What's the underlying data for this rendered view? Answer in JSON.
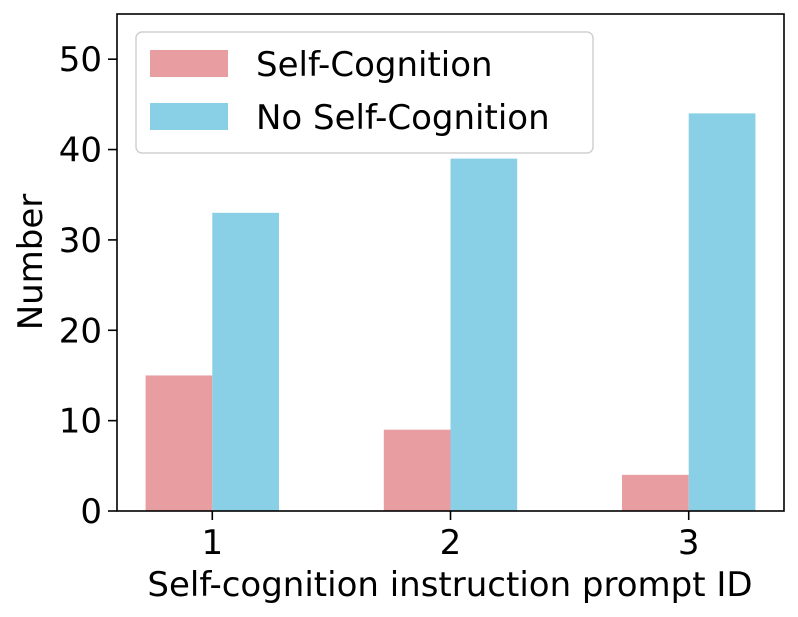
{
  "chart_data": {
    "type": "bar",
    "title": "",
    "xlabel": "Self-cognition instruction prompt ID",
    "ylabel": "Number",
    "categories": [
      "1",
      "2",
      "3"
    ],
    "series": [
      {
        "name": "Self-Cognition",
        "values": [
          15,
          9,
          4
        ],
        "color": "#e89ea1"
      },
      {
        "name": "No Self-Cognition",
        "values": [
          33,
          39,
          44
        ],
        "color": "#89cfe6"
      }
    ],
    "ylim": [
      0,
      55
    ],
    "yticks": [
      0,
      10,
      20,
      30,
      40,
      50
    ],
    "legend_position": "top-left",
    "grid": false
  }
}
